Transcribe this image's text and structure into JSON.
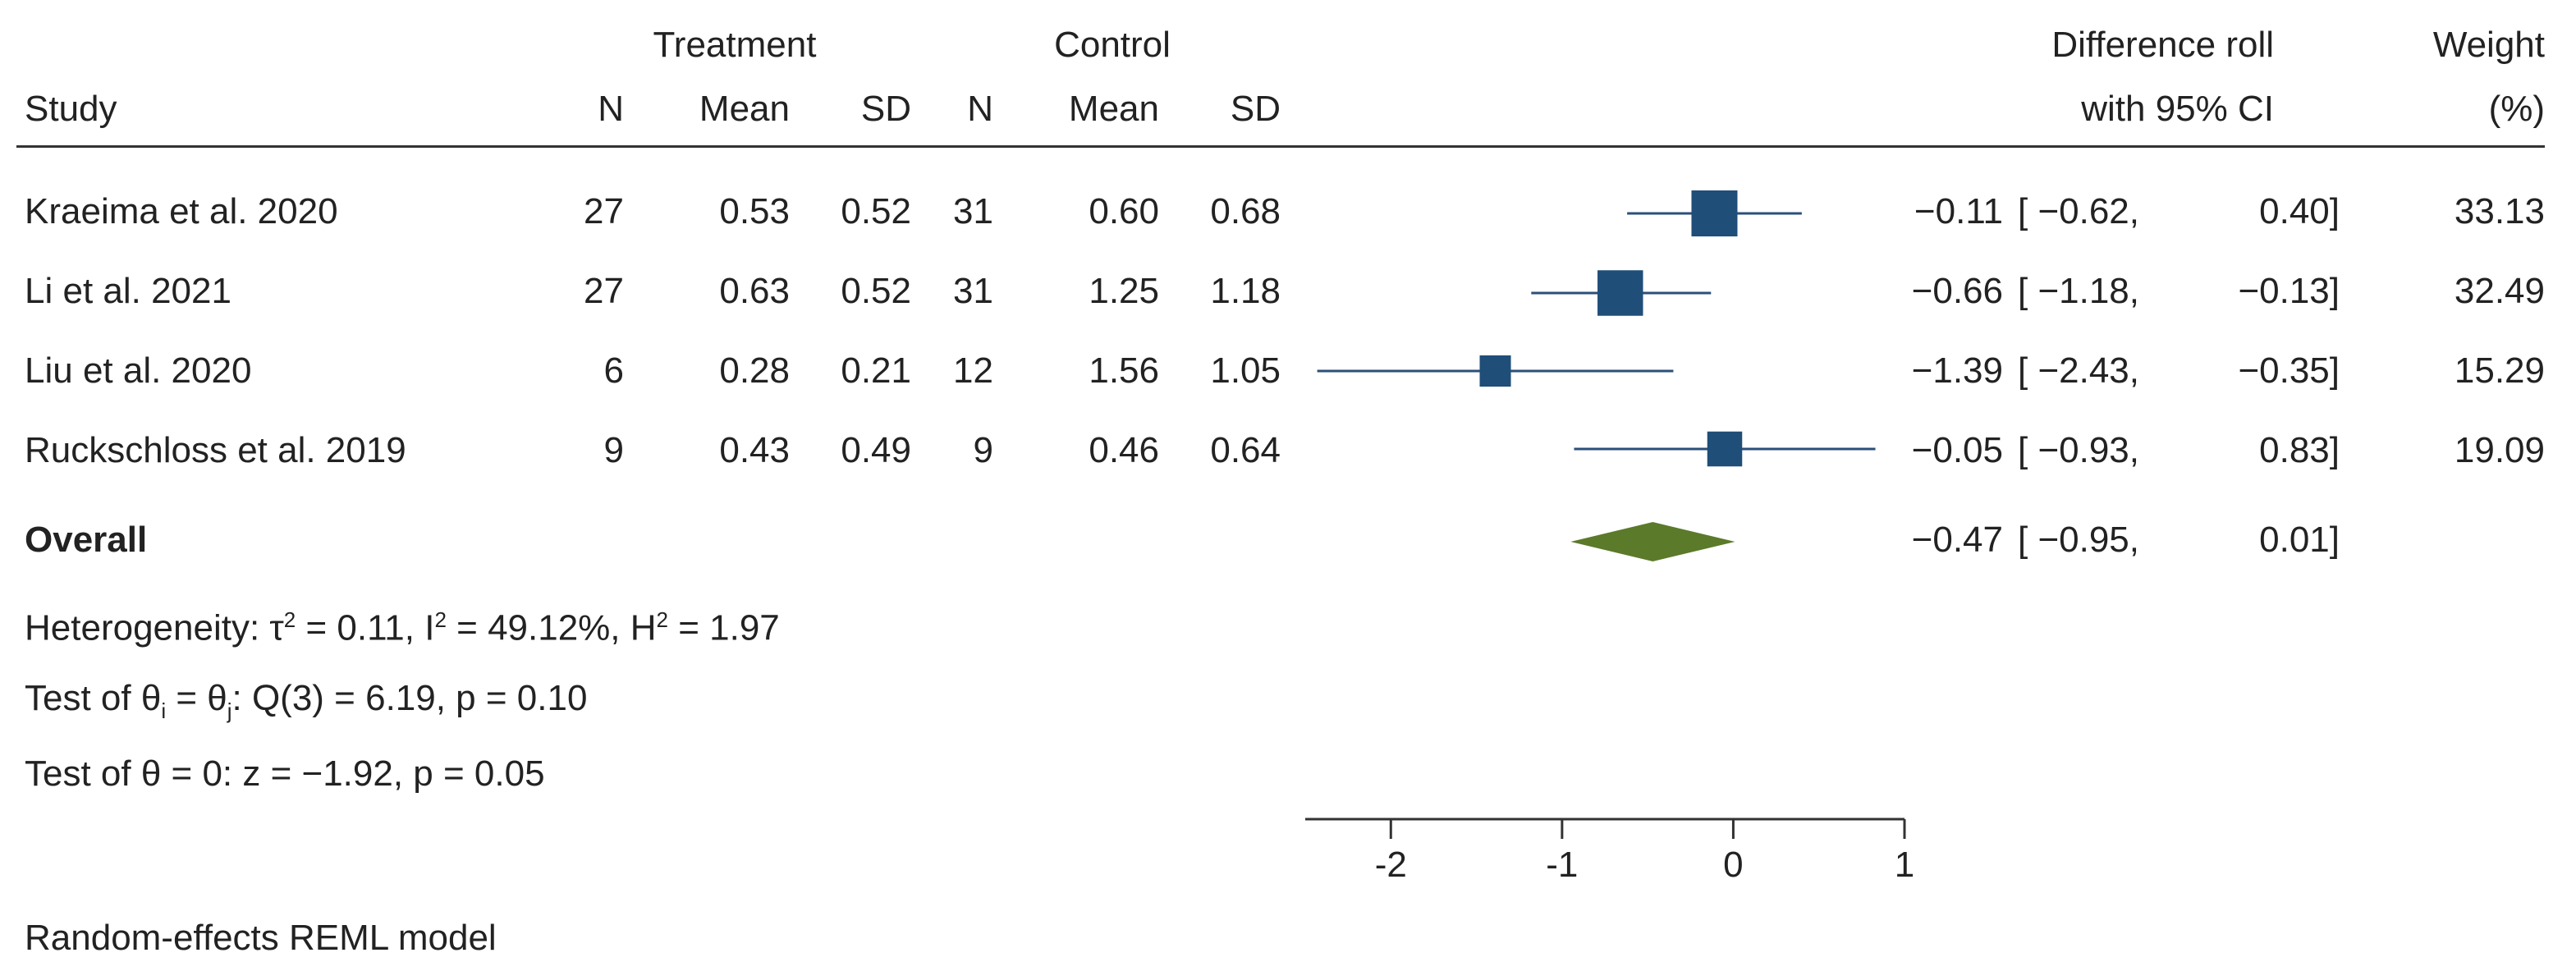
{
  "header": {
    "group_treatment": "Treatment",
    "group_control": "Control",
    "col_study": "Study",
    "col_n": "N",
    "col_mean": "Mean",
    "col_sd": "SD",
    "col_effect_line1": "Difference roll",
    "col_effect_line2": "with 95% CI",
    "col_weight_line1": "Weight",
    "col_weight_line2": "(%)"
  },
  "studies": [
    {
      "name": "Kraeima et al. 2020",
      "t_n": "27",
      "t_mean": "0.53",
      "t_sd": "0.52",
      "c_n": "31",
      "c_mean": "0.60",
      "c_sd": "0.68",
      "est": "−0.11",
      "ci_lo": "[ −0.62,",
      "ci_hi": "0.40]",
      "weight": "33.13"
    },
    {
      "name": "Li et al. 2021",
      "t_n": "27",
      "t_mean": "0.63",
      "t_sd": "0.52",
      "c_n": "31",
      "c_mean": "1.25",
      "c_sd": "1.18",
      "est": "−0.66",
      "ci_lo": "[ −1.18,",
      "ci_hi": "−0.13]",
      "weight": "32.49"
    },
    {
      "name": "Liu et al. 2020",
      "t_n": "6",
      "t_mean": "0.28",
      "t_sd": "0.21",
      "c_n": "12",
      "c_mean": "1.56",
      "c_sd": "1.05",
      "est": "−1.39",
      "ci_lo": "[ −2.43,",
      "ci_hi": "−0.35]",
      "weight": "15.29"
    },
    {
      "name": "Ruckschloss et al. 2019",
      "t_n": "9",
      "t_mean": "0.43",
      "t_sd": "0.49",
      "c_n": "9",
      "c_mean": "0.46",
      "c_sd": "0.64",
      "est": "−0.05",
      "ci_lo": "[ −0.93,",
      "ci_hi": "0.83]",
      "weight": "19.09"
    }
  ],
  "overall": {
    "label": "Overall",
    "est": "−0.47",
    "ci_lo": "[ −0.95,",
    "ci_hi": "0.01]"
  },
  "stats": {
    "het_prefix": "Heterogeneity: τ",
    "het_sup1": "2",
    "het_mid1": " = 0.11, I",
    "het_sup2": "2",
    "het_mid2": " = 49.12%, H",
    "het_sup3": "2",
    "het_end": " = 1.97",
    "test1_a": "Test of θ",
    "test1_sub1": "i",
    "test1_b": " = θ",
    "test1_sub2": "j",
    "test1_c": ": Q(3) = 6.19, p = 0.10",
    "test2": "Test of θ = 0: z = −1.92, p = 0.05"
  },
  "footnote": "Random-effects REML model",
  "colors": {
    "marker": "#1f4e79",
    "diamond": "#5b7a2a",
    "line": "#2b4f7a",
    "axis": "#333333"
  },
  "chart_data": {
    "type": "scatter",
    "title": "",
    "xlabel": "",
    "ylabel": "",
    "xlim": [
      -2.5,
      1
    ],
    "xticks": [
      -2,
      -1,
      0,
      1
    ],
    "xtick_labels": [
      "-2",
      "-1",
      "0",
      "1"
    ],
    "series": [
      {
        "name": "Kraeima et al. 2020",
        "estimate": -0.11,
        "ci_low": -0.62,
        "ci_high": 0.4,
        "weight": 33.13
      },
      {
        "name": "Li et al. 2021",
        "estimate": -0.66,
        "ci_low": -1.18,
        "ci_high": -0.13,
        "weight": 32.49
      },
      {
        "name": "Liu et al. 2020",
        "estimate": -1.39,
        "ci_low": -2.43,
        "ci_high": -0.35,
        "weight": 15.29
      },
      {
        "name": "Ruckschloss et al. 2019",
        "estimate": -0.05,
        "ci_low": -0.93,
        "ci_high": 0.83,
        "weight": 19.09
      }
    ],
    "overall": {
      "name": "Overall",
      "estimate": -0.47,
      "ci_low": -0.95,
      "ci_high": 0.01
    }
  }
}
